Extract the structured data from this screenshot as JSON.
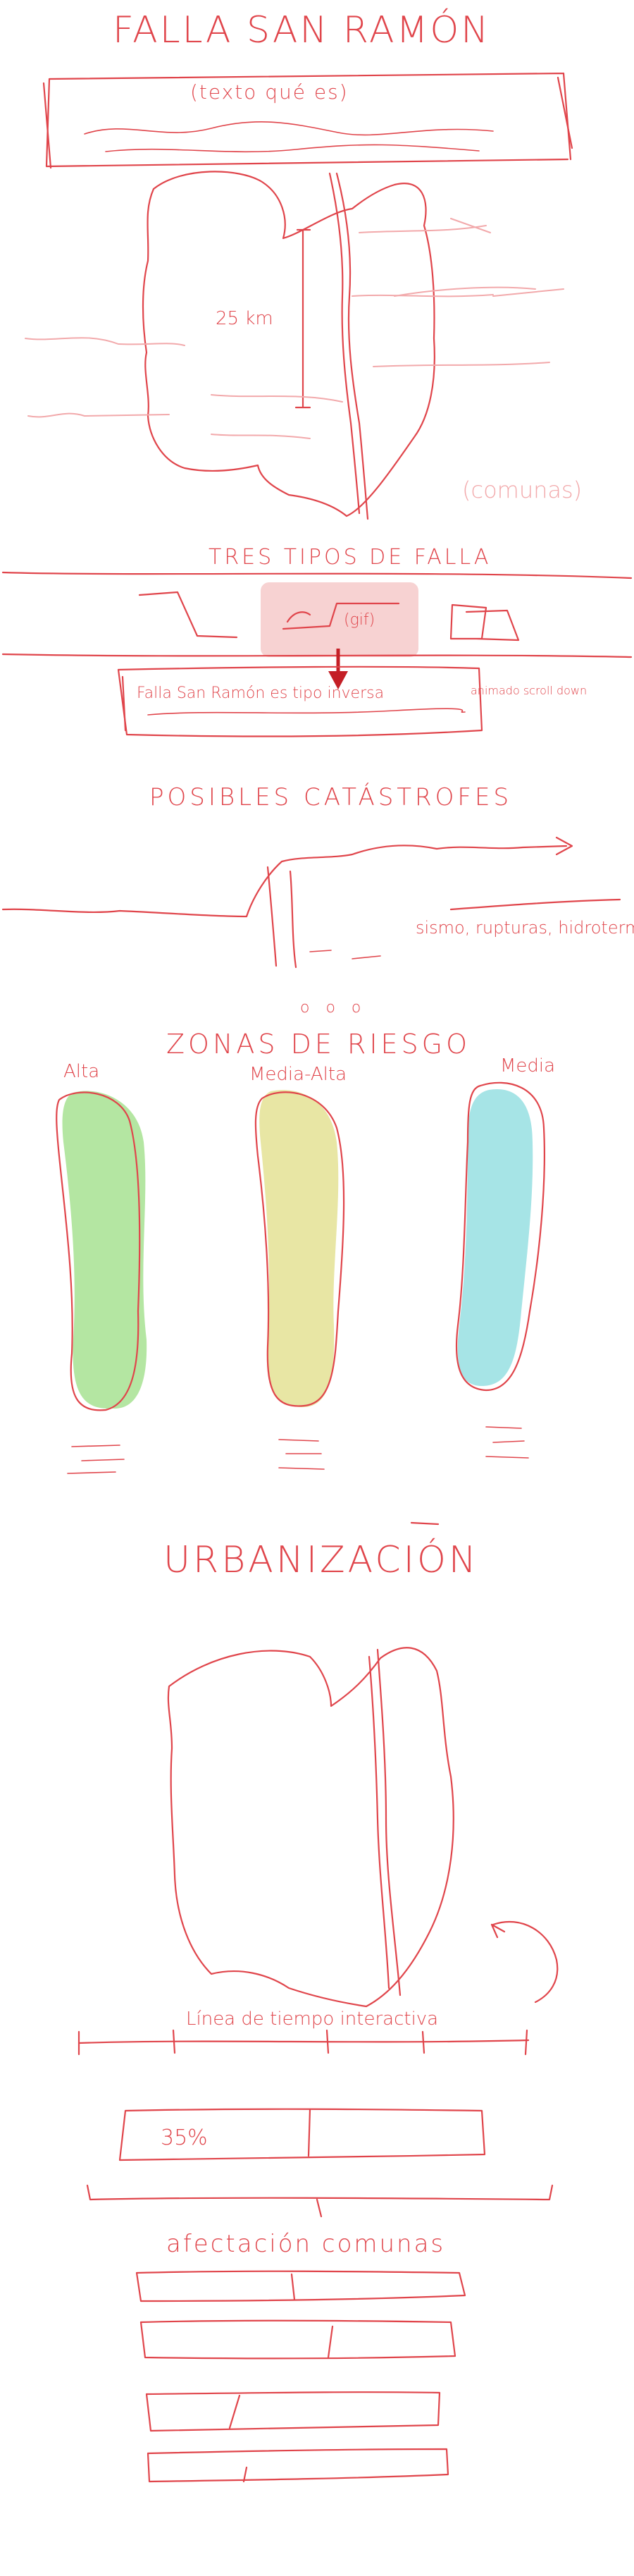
{
  "title": "FALLA SAN RAMÓN",
  "intro": {
    "placeholder": "(texto qué es)"
  },
  "map1": {
    "scale_label": "25 km",
    "caption": "(comunas)"
  },
  "fault_types": {
    "title": "TRES TIPOS DE FALLA",
    "middle_label": "(gif)",
    "note": "Falla San Ramón es tipo inversa",
    "side_note": "animado scroll down"
  },
  "catastrophes": {
    "title": "POSIBLES CATÁSTROFES",
    "label": "sismo, rupturas, hidrotermales",
    "pager": "o o o"
  },
  "risk_zones": {
    "title": "ZONAS DE RIESGO",
    "zones": [
      {
        "label": "Alta",
        "color": "#b4e6a2"
      },
      {
        "label": "Media-Alta",
        "color": "#e8e6a4"
      },
      {
        "label": "Media",
        "color": "#a6e4e6"
      }
    ]
  },
  "urbanization": {
    "title": "URBANIZACIÓN",
    "timeline_label": "Línea de tiempo interactiva",
    "stat_value": "35%",
    "affected_label": "afectación comunas"
  },
  "colors": {
    "ink": "#e0454b",
    "pink": "#f2a9ab",
    "highlight": "#f7d2d2"
  }
}
